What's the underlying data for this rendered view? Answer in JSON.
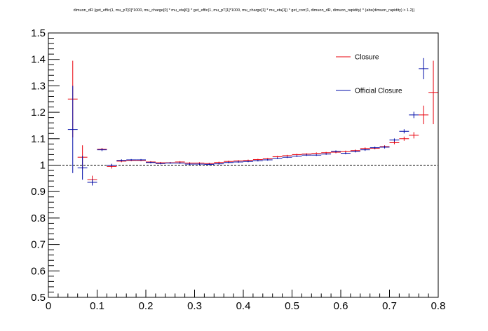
{
  "chart_data": {
    "type": "scatter",
    "title": "dimuon_dR {get_effic(1, mu_pT[0]*1000, mu_charge[0] * mu_eta[0]) * get_effic(1, mu_pT[1]*1000, mu_charge[1] * mu_eta[1]) * get_corr(1, dimuon_dR, dimuon_rapidity) * (abs(dimuon_rapidity) > 1.2)}",
    "xlabel": "",
    "ylabel": "",
    "xlim": [
      0,
      0.8
    ],
    "ylim": [
      0.5,
      1.5
    ],
    "x_ticks": [
      0,
      0.1,
      0.2,
      0.3,
      0.4,
      0.5,
      0.6,
      0.7,
      0.8
    ],
    "x_tick_labels": [
      "0",
      "0.1",
      "0.2",
      "0.3",
      "0.4",
      "0.5",
      "0.6",
      "0.7",
      "0.8"
    ],
    "y_ticks": [
      0.5,
      0.6,
      0.7,
      0.8,
      0.9,
      1.0,
      1.1,
      1.2,
      1.3,
      1.4,
      1.5
    ],
    "y_tick_labels": [
      "0.5",
      "0.6",
      "0.7",
      "0.8",
      "0.9",
      "1",
      "1.1",
      "1.2",
      "1.3",
      "1.4",
      "1.5"
    ],
    "reference_line": 1.0,
    "bin_half_width": 0.01,
    "legend_position": "top-right",
    "series": [
      {
        "name": "Closure",
        "color": "#e8000b",
        "points": [
          {
            "x": 0.05,
            "y": 1.25,
            "err": 0.145
          },
          {
            "x": 0.07,
            "y": 1.03,
            "err": 0.045
          },
          {
            "x": 0.09,
            "y": 0.945,
            "err": 0.015
          },
          {
            "x": 0.11,
            "y": 1.06,
            "err": 0.005
          },
          {
            "x": 0.13,
            "y": 0.995,
            "err": 0.008
          },
          {
            "x": 0.15,
            "y": 1.015,
            "err": 0.004
          },
          {
            "x": 0.17,
            "y": 1.018,
            "err": 0.003
          },
          {
            "x": 0.19,
            "y": 1.018,
            "err": 0.003
          },
          {
            "x": 0.21,
            "y": 1.012,
            "err": 0.003
          },
          {
            "x": 0.23,
            "y": 1.009,
            "err": 0.003
          },
          {
            "x": 0.25,
            "y": 1.009,
            "err": 0.003
          },
          {
            "x": 0.27,
            "y": 1.012,
            "err": 0.003
          },
          {
            "x": 0.29,
            "y": 1.008,
            "err": 0.003
          },
          {
            "x": 0.31,
            "y": 1.008,
            "err": 0.003
          },
          {
            "x": 0.33,
            "y": 1.006,
            "err": 0.003
          },
          {
            "x": 0.35,
            "y": 1.01,
            "err": 0.003
          },
          {
            "x": 0.37,
            "y": 1.014,
            "err": 0.003
          },
          {
            "x": 0.39,
            "y": 1.016,
            "err": 0.003
          },
          {
            "x": 0.41,
            "y": 1.018,
            "err": 0.003
          },
          {
            "x": 0.43,
            "y": 1.021,
            "err": 0.003
          },
          {
            "x": 0.45,
            "y": 1.024,
            "err": 0.003
          },
          {
            "x": 0.47,
            "y": 1.032,
            "err": 0.003
          },
          {
            "x": 0.49,
            "y": 1.036,
            "err": 0.003
          },
          {
            "x": 0.51,
            "y": 1.04,
            "err": 0.003
          },
          {
            "x": 0.53,
            "y": 1.042,
            "err": 0.003
          },
          {
            "x": 0.55,
            "y": 1.045,
            "err": 0.003
          },
          {
            "x": 0.57,
            "y": 1.047,
            "err": 0.003
          },
          {
            "x": 0.59,
            "y": 1.049,
            "err": 0.004
          },
          {
            "x": 0.61,
            "y": 1.051,
            "err": 0.004
          },
          {
            "x": 0.63,
            "y": 1.055,
            "err": 0.004
          },
          {
            "x": 0.65,
            "y": 1.063,
            "err": 0.004
          },
          {
            "x": 0.67,
            "y": 1.064,
            "err": 0.004
          },
          {
            "x": 0.69,
            "y": 1.07,
            "err": 0.005
          },
          {
            "x": 0.71,
            "y": 1.085,
            "err": 0.006
          },
          {
            "x": 0.73,
            "y": 1.1,
            "err": 0.008
          },
          {
            "x": 0.75,
            "y": 1.113,
            "err": 0.012
          },
          {
            "x": 0.77,
            "y": 1.19,
            "err": 0.035
          },
          {
            "x": 0.79,
            "y": 1.275,
            "err": 0.12
          }
        ]
      },
      {
        "name": "Official Closure",
        "color": "#000ca8",
        "points": [
          {
            "x": 0.05,
            "y": 1.135,
            "err": 0.165
          },
          {
            "x": 0.07,
            "y": 0.99,
            "err": 0.045
          },
          {
            "x": 0.09,
            "y": 0.935,
            "err": 0.012
          },
          {
            "x": 0.11,
            "y": 1.058,
            "err": 0.005
          },
          {
            "x": 0.13,
            "y": 1.0,
            "err": 0.005
          },
          {
            "x": 0.15,
            "y": 1.018,
            "err": 0.004
          },
          {
            "x": 0.17,
            "y": 1.02,
            "err": 0.003
          },
          {
            "x": 0.19,
            "y": 1.02,
            "err": 0.003
          },
          {
            "x": 0.21,
            "y": 1.01,
            "err": 0.003
          },
          {
            "x": 0.23,
            "y": 1.006,
            "err": 0.003
          },
          {
            "x": 0.25,
            "y": 1.008,
            "err": 0.003
          },
          {
            "x": 0.27,
            "y": 1.008,
            "err": 0.003
          },
          {
            "x": 0.29,
            "y": 1.004,
            "err": 0.003
          },
          {
            "x": 0.31,
            "y": 1.004,
            "err": 0.003
          },
          {
            "x": 0.33,
            "y": 1.003,
            "err": 0.003
          },
          {
            "x": 0.35,
            "y": 1.005,
            "err": 0.003
          },
          {
            "x": 0.37,
            "y": 1.01,
            "err": 0.003
          },
          {
            "x": 0.39,
            "y": 1.012,
            "err": 0.003
          },
          {
            "x": 0.41,
            "y": 1.014,
            "err": 0.003
          },
          {
            "x": 0.43,
            "y": 1.017,
            "err": 0.003
          },
          {
            "x": 0.45,
            "y": 1.02,
            "err": 0.003
          },
          {
            "x": 0.47,
            "y": 1.026,
            "err": 0.003
          },
          {
            "x": 0.49,
            "y": 1.03,
            "err": 0.003
          },
          {
            "x": 0.51,
            "y": 1.034,
            "err": 0.003
          },
          {
            "x": 0.53,
            "y": 1.038,
            "err": 0.003
          },
          {
            "x": 0.55,
            "y": 1.038,
            "err": 0.003
          },
          {
            "x": 0.57,
            "y": 1.042,
            "err": 0.003
          },
          {
            "x": 0.59,
            "y": 1.052,
            "err": 0.004
          },
          {
            "x": 0.61,
            "y": 1.045,
            "err": 0.004
          },
          {
            "x": 0.63,
            "y": 1.052,
            "err": 0.004
          },
          {
            "x": 0.65,
            "y": 1.058,
            "err": 0.004
          },
          {
            "x": 0.67,
            "y": 1.066,
            "err": 0.004
          },
          {
            "x": 0.69,
            "y": 1.068,
            "err": 0.005
          },
          {
            "x": 0.71,
            "y": 1.095,
            "err": 0.006
          },
          {
            "x": 0.73,
            "y": 1.128,
            "err": 0.008
          },
          {
            "x": 0.75,
            "y": 1.19,
            "err": 0.012
          },
          {
            "x": 0.77,
            "y": 1.365,
            "err": 0.04
          }
        ]
      }
    ]
  }
}
